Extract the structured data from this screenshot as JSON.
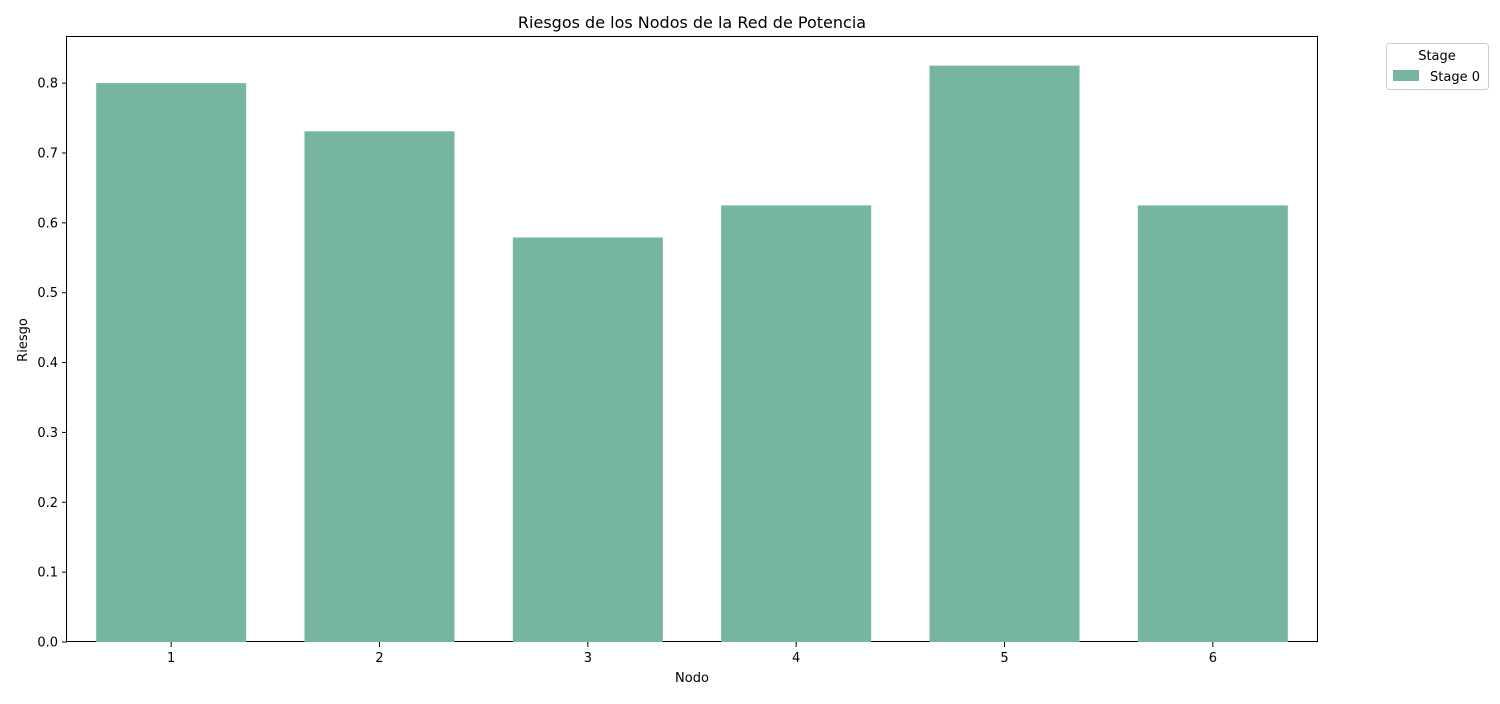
{
  "chart_data": {
    "type": "bar",
    "title": "Riesgos de los Nodos de la Red de Potencia",
    "xlabel": "Nodo",
    "ylabel": "Riesgo",
    "categories": [
      "1",
      "2",
      "3",
      "4",
      "5",
      "6"
    ],
    "series": [
      {
        "name": "Stage 0",
        "color": "#75b5a1",
        "values": [
          0.8,
          0.731,
          0.579,
          0.625,
          0.825,
          0.625
        ]
      }
    ],
    "ylim": [
      0,
      0.866
    ],
    "yticks": [
      "0.0",
      "0.1",
      "0.2",
      "0.3",
      "0.4",
      "0.5",
      "0.6",
      "0.7",
      "0.8"
    ],
    "grid": false,
    "legend": {
      "title": "Stage",
      "placement": "outside-top-right"
    }
  }
}
